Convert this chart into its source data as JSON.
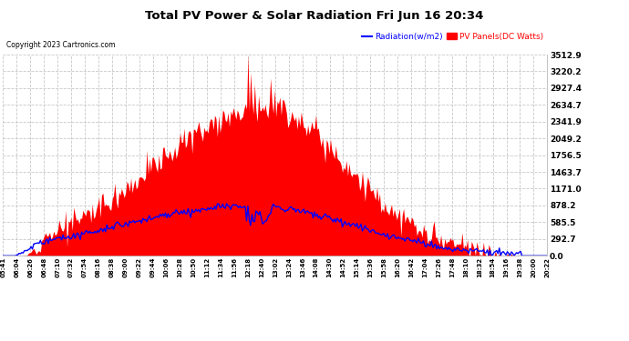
{
  "title": "Total PV Power & Solar Radiation Fri Jun 16 20:34",
  "copyright": "Copyright 2023 Cartronics.com",
  "legend_radiation": "Radiation(w/m2)",
  "legend_pv": "PV Panels(DC Watts)",
  "ymax": 3512.9,
  "yticks": [
    0.0,
    292.7,
    585.5,
    878.2,
    1171.0,
    1463.7,
    1756.5,
    2049.2,
    2341.9,
    2634.7,
    2927.4,
    3220.2,
    3512.9
  ],
  "background_color": "#ffffff",
  "plot_bg_color": "#ffffff",
  "grid_color": "#c8c8c8",
  "pv_fill_color": "red",
  "radiation_line_color": "blue",
  "title_color": "#000000",
  "copyright_color": "#000000",
  "radiation_legend_color": "blue",
  "pv_legend_color": "red",
  "x_labels": [
    "05:41",
    "06:04",
    "06:26",
    "06:48",
    "07:10",
    "07:32",
    "07:54",
    "08:16",
    "08:38",
    "09:00",
    "09:22",
    "09:44",
    "10:06",
    "10:28",
    "10:50",
    "11:12",
    "11:34",
    "11:56",
    "12:18",
    "12:40",
    "13:02",
    "13:24",
    "13:46",
    "14:08",
    "14:30",
    "14:52",
    "15:14",
    "15:36",
    "15:58",
    "16:20",
    "16:42",
    "17:04",
    "17:26",
    "17:48",
    "18:10",
    "18:32",
    "18:54",
    "19:16",
    "19:38",
    "20:00",
    "20:22"
  ]
}
